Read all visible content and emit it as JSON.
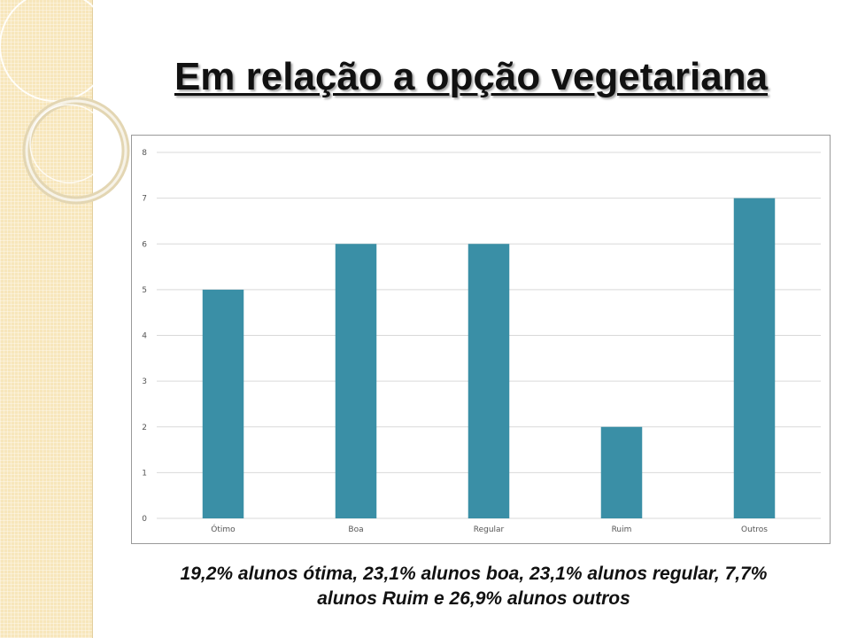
{
  "slide": {
    "title": "Em relação a  opção vegetariana",
    "caption_line1": "19,2% alunos ótima, 23,1% alunos boa, 23,1% alunos regular, 7,7%",
    "caption_line2": "alunos Ruim e 26,9% alunos outros"
  },
  "colors": {
    "bar": "#3a8fa6",
    "grid": "#d9d9d9",
    "side_strip": "#f7e6bb"
  },
  "chart_data": {
    "type": "bar",
    "title": "",
    "xlabel": "",
    "ylabel": "",
    "categories": [
      "Ótimo",
      "Boa",
      "Regular",
      "Ruim",
      "Outros"
    ],
    "values": [
      5,
      6,
      6,
      2,
      7
    ],
    "ylim": [
      0,
      8
    ],
    "yticks": [
      0,
      1,
      2,
      3,
      4,
      5,
      6,
      7,
      8
    ],
    "grid": true,
    "legend": "none"
  }
}
